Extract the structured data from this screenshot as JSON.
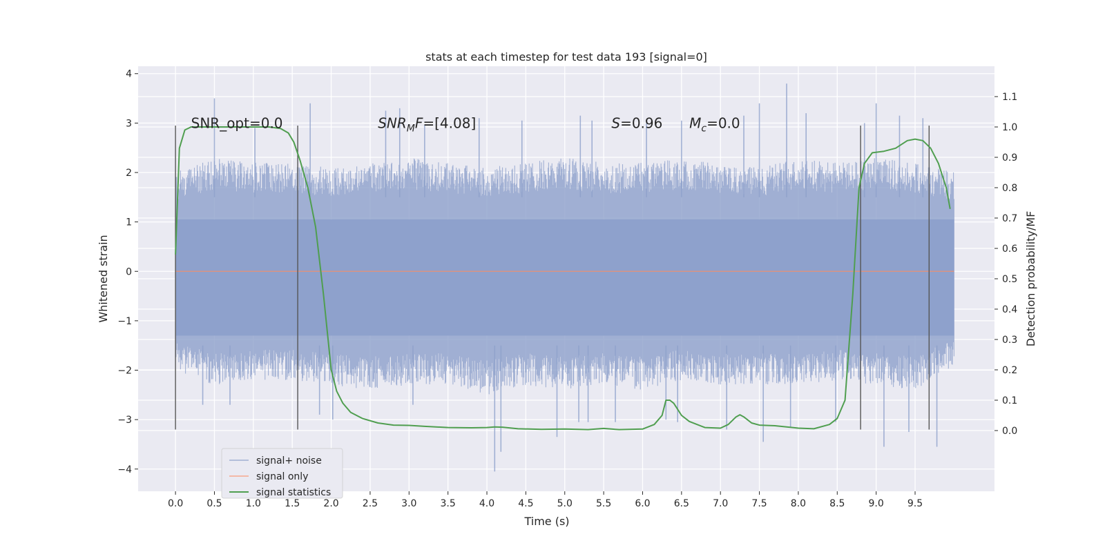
{
  "chart_data": {
    "type": "line",
    "title": "stats at each timestep for test data 193 [signal=0]",
    "xlabel": "Time (s)",
    "ylabel": "Whitened strain",
    "y2label": "Detection probability/MF",
    "xlim": [
      -0.48,
      10.52
    ],
    "ylim": [
      -4.45,
      4.15
    ],
    "y2lim": [
      -0.2,
      1.2
    ],
    "x_ticks": [
      "0.0",
      "0.5",
      "1.0",
      "1.5",
      "2.0",
      "2.5",
      "3.0",
      "3.5",
      "4.0",
      "4.5",
      "5.0",
      "5.5",
      "6.0",
      "6.5",
      "7.0",
      "7.5",
      "8.0",
      "8.5",
      "9.0",
      "9.5"
    ],
    "y_ticks": [
      "4",
      "3",
      "2",
      "1",
      "0",
      "−1",
      "−2",
      "−3",
      "−4"
    ],
    "y2_ticks": [
      "1.1",
      "1.0",
      "0.9",
      "0.8",
      "0.7",
      "0.6",
      "0.5",
      "0.4",
      "0.3",
      "0.2",
      "0.1",
      "0.0"
    ],
    "grid": true,
    "legend_position": "lower-left",
    "annotations": [
      {
        "text": "SNR_opt=0.0",
        "x": 0.2,
        "y": 3.0
      },
      {
        "text_italic": "SNR",
        "text_sub": "M",
        "text_italic2": "F",
        "text_rest": "=[4.08]",
        "x": 2.6,
        "y": 3.0
      },
      {
        "text_italic": "S",
        "text_rest": "=0.96",
        "x": 5.6,
        "y": 3.0
      },
      {
        "text_italic": "M",
        "text_sub": "c",
        "text_rest": "=0.0",
        "x": 6.6,
        "y": 3.0
      }
    ],
    "vlines": [
      0.0,
      1.57,
      8.8,
      9.68
    ],
    "vline_range": [
      -3.2,
      2.95
    ],
    "series": [
      {
        "name": "signal+ noise",
        "color": "#8da0cb",
        "opacity": 0.8,
        "x_range": [
          0.0,
          10.0
        ],
        "band_envelope": {
          "t": [
            0.0,
            0.5,
            1.0,
            1.5,
            2.0,
            2.5,
            3.0,
            3.5,
            4.0,
            4.5,
            5.0,
            5.5,
            6.0,
            6.5,
            7.0,
            7.5,
            8.0,
            8.5,
            9.0,
            9.5,
            10.0
          ],
          "upper": [
            2.0,
            2.3,
            2.2,
            2.2,
            2.1,
            2.2,
            2.3,
            2.2,
            2.1,
            2.2,
            2.3,
            2.2,
            2.2,
            2.3,
            2.2,
            2.1,
            2.3,
            2.2,
            2.3,
            2.2,
            2.0
          ],
          "lower": [
            -2.0,
            -2.3,
            -2.2,
            -2.2,
            -2.3,
            -2.4,
            -2.3,
            -2.3,
            -2.5,
            -2.3,
            -2.4,
            -2.3,
            -2.4,
            -2.2,
            -2.3,
            -2.3,
            -2.3,
            -2.2,
            -2.3,
            -2.4,
            -1.9
          ]
        },
        "spikes": [
          [
            0.5,
            3.5
          ],
          [
            1.02,
            2.9
          ],
          [
            1.73,
            3.4
          ],
          [
            2.7,
            3.25
          ],
          [
            2.88,
            3.3
          ],
          [
            3.2,
            2.95
          ],
          [
            3.9,
            3.1
          ],
          [
            4.45,
            3.05
          ],
          [
            5.2,
            3.15
          ],
          [
            5.35,
            3.05
          ],
          [
            6.05,
            3.0
          ],
          [
            6.5,
            3.05
          ],
          [
            7.3,
            3.15
          ],
          [
            7.5,
            3.4
          ],
          [
            7.85,
            3.8
          ],
          [
            8.1,
            3.2
          ],
          [
            8.85,
            3.0
          ],
          [
            9.0,
            3.4
          ],
          [
            9.3,
            3.15
          ],
          [
            9.6,
            3.1
          ],
          [
            0.35,
            -2.7
          ],
          [
            0.7,
            -2.7
          ],
          [
            1.85,
            -2.9
          ],
          [
            2.02,
            -3.0
          ],
          [
            3.05,
            -2.7
          ],
          [
            4.1,
            -4.05
          ],
          [
            4.18,
            -3.65
          ],
          [
            4.9,
            -3.35
          ],
          [
            5.18,
            -3.05
          ],
          [
            5.3,
            -3.05
          ],
          [
            5.65,
            -3.05
          ],
          [
            6.3,
            -3.0
          ],
          [
            6.45,
            -3.05
          ],
          [
            7.08,
            -3.2
          ],
          [
            7.55,
            -3.45
          ],
          [
            7.9,
            -3.15
          ],
          [
            8.48,
            -3.05
          ],
          [
            9.1,
            -3.55
          ],
          [
            9.42,
            -3.25
          ],
          [
            9.78,
            -3.55
          ]
        ]
      },
      {
        "name": "signal only",
        "color": "#fc8d62",
        "opacity": 0.7,
        "x": [
          0.0,
          10.0
        ],
        "y": [
          0.0,
          0.0
        ]
      },
      {
        "name": "signal statistics",
        "color": "#4f9e4f",
        "axis": "right",
        "x": [
          0.0,
          0.05,
          0.12,
          0.2,
          0.3,
          0.5,
          0.8,
          1.0,
          1.2,
          1.35,
          1.45,
          1.52,
          1.6,
          1.7,
          1.8,
          1.9,
          2.0,
          2.07,
          2.15,
          2.25,
          2.4,
          2.6,
          2.8,
          3.0,
          3.2,
          3.5,
          3.8,
          4.0,
          4.1,
          4.2,
          4.4,
          4.7,
          5.0,
          5.3,
          5.5,
          5.7,
          6.0,
          6.15,
          6.25,
          6.3,
          6.35,
          6.4,
          6.5,
          6.6,
          6.8,
          7.0,
          7.1,
          7.2,
          7.25,
          7.3,
          7.4,
          7.5,
          7.7,
          8.0,
          8.2,
          8.4,
          8.5,
          8.6,
          8.7,
          8.78,
          8.85,
          8.95,
          9.1,
          9.25,
          9.4,
          9.5,
          9.6,
          9.7,
          9.8,
          9.9,
          9.95
        ],
        "y": [
          0.58,
          0.93,
          0.99,
          1.0,
          1.0,
          1.0,
          1.0,
          1.0,
          1.0,
          0.995,
          0.98,
          0.95,
          0.89,
          0.8,
          0.67,
          0.45,
          0.2,
          0.13,
          0.09,
          0.06,
          0.04,
          0.025,
          0.018,
          0.017,
          0.014,
          0.01,
          0.009,
          0.01,
          0.012,
          0.011,
          0.006,
          0.004,
          0.005,
          0.003,
          0.007,
          0.003,
          0.005,
          0.02,
          0.05,
          0.1,
          0.1,
          0.09,
          0.05,
          0.03,
          0.01,
          0.008,
          0.02,
          0.045,
          0.052,
          0.045,
          0.025,
          0.018,
          0.016,
          0.008,
          0.006,
          0.02,
          0.04,
          0.1,
          0.45,
          0.8,
          0.88,
          0.915,
          0.92,
          0.93,
          0.955,
          0.96,
          0.955,
          0.93,
          0.88,
          0.8,
          0.73
        ]
      }
    ]
  }
}
